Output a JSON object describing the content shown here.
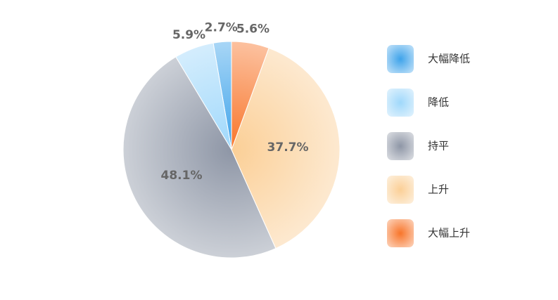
{
  "chart_data": {
    "type": "pie",
    "categories": [
      "大幅降低",
      "降低",
      "持平",
      "上升",
      "大幅上升"
    ],
    "values": [
      2.7,
      5.9,
      48.1,
      37.7,
      5.6
    ],
    "value_labels": [
      "2.7%",
      "5.9%",
      "48.1%",
      "37.7%",
      "5.6%"
    ],
    "colors": [
      "#3ea3ea",
      "#9fd8fb",
      "#8e96a6",
      "#fbcf96",
      "#f8752a"
    ],
    "legend": "right"
  }
}
